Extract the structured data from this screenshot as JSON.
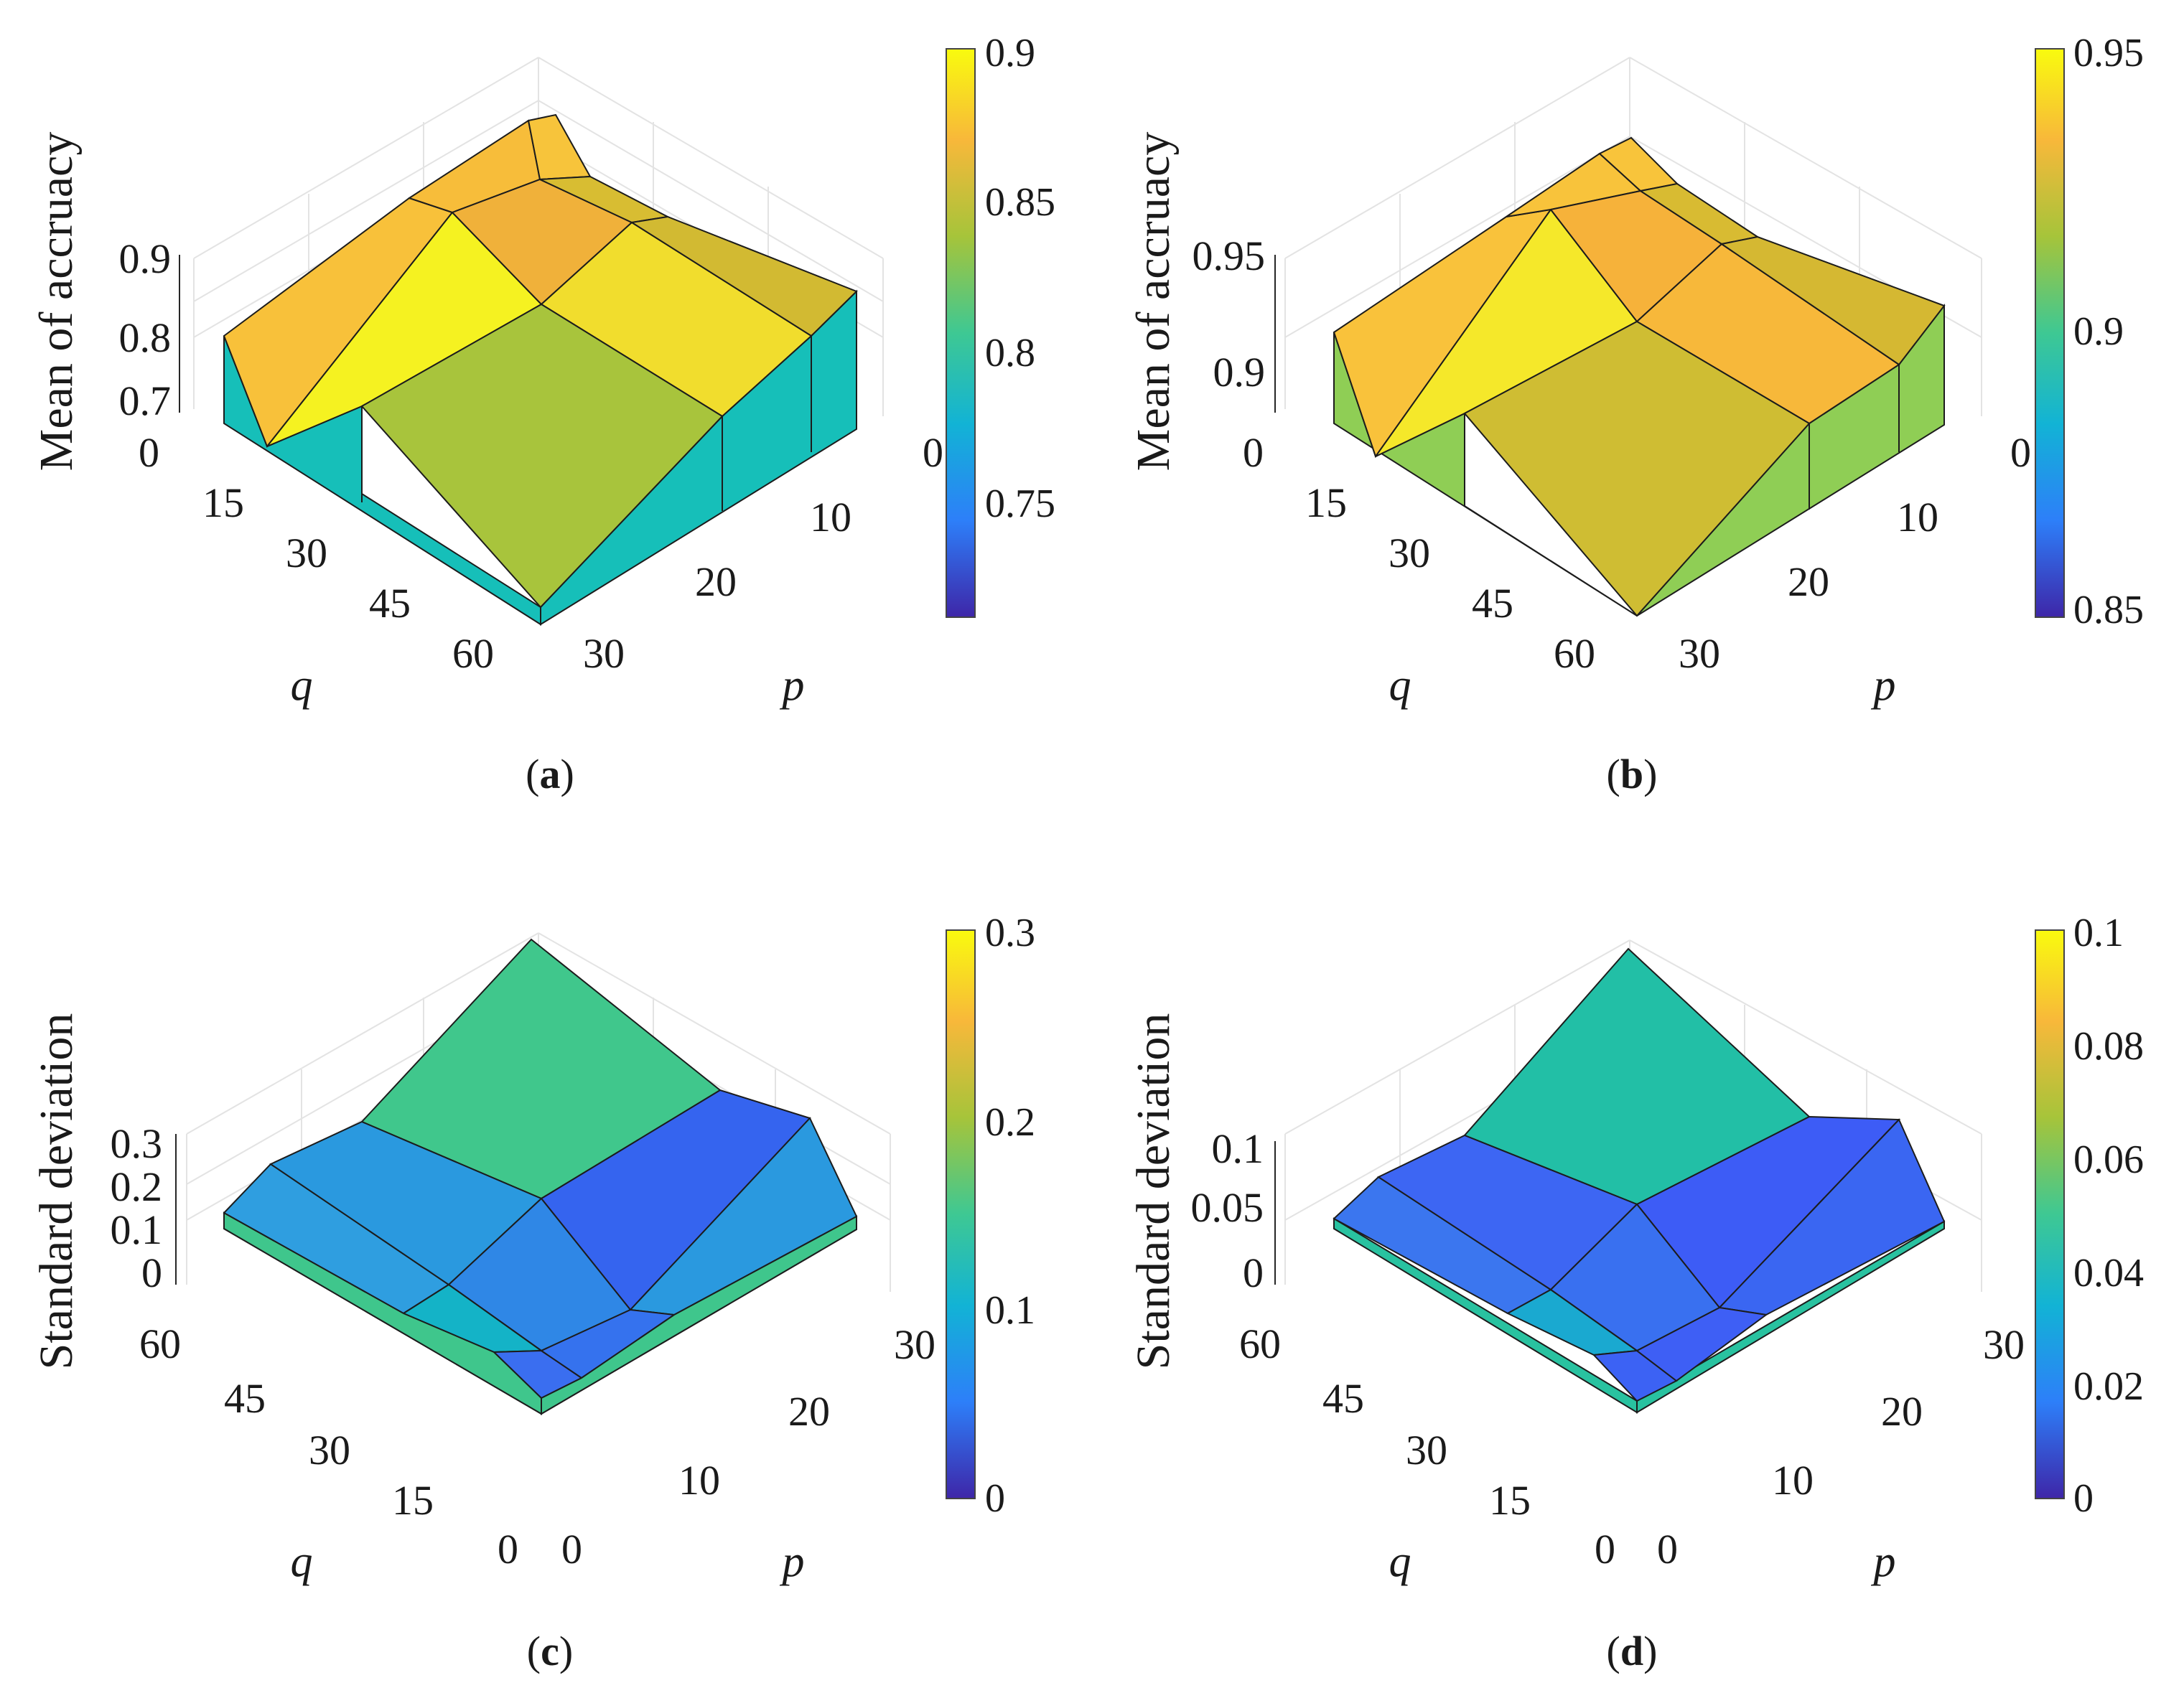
{
  "chart_data": [
    {
      "id": "a",
      "type": "surface3d",
      "caption": "a",
      "zlabel": "Mean of accruacy",
      "xlabel": "q",
      "ylabel": "p",
      "q_ticks": [
        "0",
        "15",
        "30",
        "45",
        "60"
      ],
      "p_ticks": [
        "0",
        "10",
        "20",
        "30"
      ],
      "z_ticks": [
        "0.7",
        "0.8",
        "0.9"
      ],
      "colorbar_ticks": [
        "0.9",
        "0.85",
        "0.8",
        "0.75"
      ],
      "colormap_range": [
        0.71,
        0.9
      ],
      "zlim": [
        0.7,
        0.9
      ],
      "colors": {
        "top": "#f9e52a",
        "front": "#16bfb9",
        "mid": "#a8c43c",
        "high": "#f3b53b"
      }
    },
    {
      "id": "b",
      "type": "surface3d",
      "caption": "b",
      "zlabel": "Mean of accruacy",
      "xlabel": "q",
      "ylabel": "p",
      "q_ticks": [
        "0",
        "15",
        "30",
        "45",
        "60"
      ],
      "p_ticks": [
        "0",
        "10",
        "20",
        "30"
      ],
      "z_ticks": [
        "0.9",
        "0.95"
      ],
      "colorbar_ticks": [
        "0.95",
        "0.9",
        "0.85"
      ],
      "colormap_range": [
        0.85,
        0.95
      ],
      "zlim": [
        0.88,
        0.95
      ],
      "colors": {
        "top": "#f6e72c",
        "front": "#8fce55",
        "mid": "#cfbd33",
        "high": "#f7bc3c"
      }
    },
    {
      "id": "c",
      "type": "surface3d",
      "caption": "c",
      "zlabel": "Standard deviation",
      "xlabel": "q",
      "ylabel": "p",
      "q_ticks": [
        "60",
        "45",
        "30",
        "15",
        "0"
      ],
      "p_ticks": [
        "0",
        "10",
        "20",
        "30"
      ],
      "z_ticks": [
        "0",
        "0.1",
        "0.2",
        "0.3"
      ],
      "colorbar_ticks": [
        "0.3",
        "0.2",
        "0.1",
        "0"
      ],
      "colormap_range": [
        0,
        0.3
      ],
      "zlim": [
        0,
        0.3
      ],
      "colors": {
        "peak": "#3fc68c",
        "left": "#2b99de",
        "right": "#3564ef",
        "low": "#14b3c7",
        "side": "#3fc68c"
      }
    },
    {
      "id": "d",
      "type": "surface3d",
      "caption": "d",
      "zlabel": "Standard deviation",
      "xlabel": "q",
      "ylabel": "p",
      "q_ticks": [
        "60",
        "45",
        "30",
        "15",
        "0"
      ],
      "p_ticks": [
        "0",
        "10",
        "20",
        "30"
      ],
      "z_ticks": [
        "0",
        "0.05",
        "0.1"
      ],
      "colorbar_ticks": [
        "0.1",
        "0.08",
        "0.06",
        "0.04",
        "0.02",
        "0"
      ],
      "colormap_range": [
        0,
        0.1
      ],
      "zlim": [
        0,
        0.1
      ],
      "colors": {
        "peak": "#22bfa6",
        "left": "#3b6cf0",
        "right": "#3d5cf6",
        "low": "#1aa9d0",
        "side": "#29c2a0"
      }
    }
  ],
  "colormap": [
    "#3e26a8",
    "#2d7ff9",
    "#12b3d5",
    "#3ec893",
    "#a6c43a",
    "#f8b83a",
    "#f9fb0e"
  ]
}
